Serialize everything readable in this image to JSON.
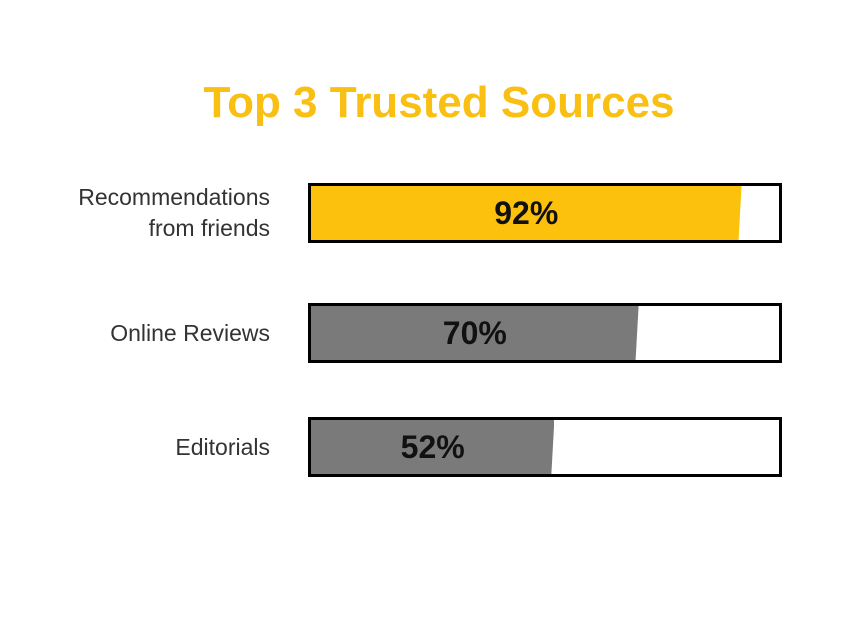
{
  "colors": {
    "title": "#F9BF12",
    "highlight": "#FCC10C",
    "bar": "#7A7A7A"
  },
  "chart_data": {
    "type": "bar",
    "orientation": "horizontal",
    "title": "Top 3 Trusted Sources",
    "xlim": [
      0,
      100
    ],
    "grid": false,
    "categories": [
      "Recommendations from friends",
      "Online Reviews",
      "Editorials"
    ],
    "category_lines": [
      [
        "Recommendations",
        "from friends"
      ],
      [
        "Online Reviews"
      ],
      [
        "Editorials"
      ]
    ],
    "values": [
      92,
      70,
      52
    ],
    "value_labels": [
      "92%",
      "70%",
      "52%"
    ],
    "highlight_index": 0
  }
}
